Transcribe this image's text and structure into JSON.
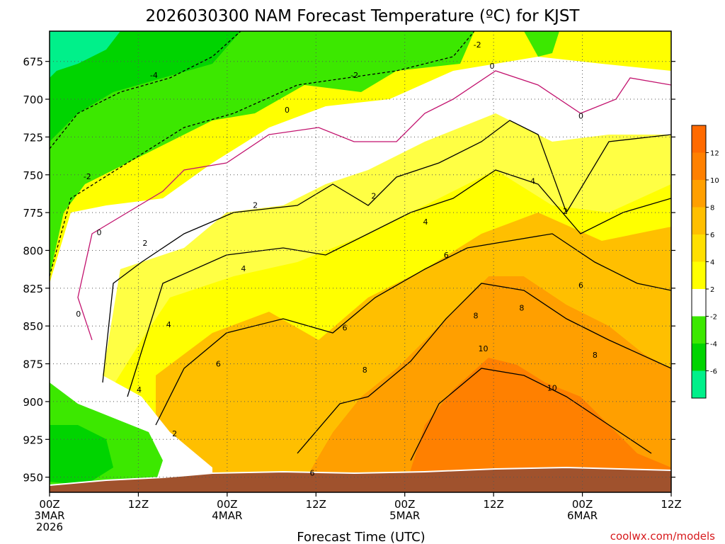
{
  "chart_data": {
    "type": "heatmap",
    "title": "2026030300 NAM Forecast Temperature (ºC) for KJST",
    "xlabel": "Forecast Time (UTC)",
    "ylabel": "",
    "x_axis": {
      "range_hours": [
        0,
        84
      ],
      "ticks": [
        {
          "hour": 0,
          "lines": [
            "00Z",
            "3MAR",
            "2026"
          ]
        },
        {
          "hour": 12,
          "lines": [
            "12Z"
          ]
        },
        {
          "hour": 24,
          "lines": [
            "00Z",
            "4MAR"
          ]
        },
        {
          "hour": 36,
          "lines": [
            "12Z"
          ]
        },
        {
          "hour": 48,
          "lines": [
            "00Z",
            "5MAR"
          ]
        },
        {
          "hour": 60,
          "lines": [
            "12Z"
          ]
        },
        {
          "hour": 72,
          "lines": [
            "00Z",
            "6MAR"
          ]
        },
        {
          "hour": 84,
          "lines": [
            "12Z"
          ]
        }
      ]
    },
    "y_axis": {
      "range_hpa": [
        655,
        960
      ],
      "inverted": true,
      "ticks": [
        675,
        700,
        725,
        750,
        775,
        800,
        825,
        850,
        875,
        900,
        925,
        950
      ]
    },
    "grid": "dotted",
    "colorbar": {
      "levels": [
        -6,
        -4,
        -2,
        2,
        4,
        6,
        8,
        10,
        12
      ],
      "labels": [
        "-6",
        "-4",
        "-2",
        "2",
        "4",
        "6",
        "8",
        "10",
        "12"
      ],
      "colors": [
        "#00f08a",
        "#00d400",
        "#3ce800",
        "#ffffff",
        "#ffff00",
        "#ffdf00",
        "#ffbf00",
        "#ff9f00",
        "#ff8000",
        "#ff6a00"
      ]
    },
    "terrain_color": "#a0522d",
    "contour_labels": [
      {
        "t": "-2",
        "h": 57.8,
        "p": 664
      },
      {
        "t": "-4",
        "h": 14.1,
        "p": 684
      },
      {
        "t": "-2",
        "h": 41.2,
        "p": 684
      },
      {
        "t": "0",
        "h": 59.8,
        "p": 678
      },
      {
        "t": "0",
        "h": 32.1,
        "p": 707
      },
      {
        "t": "0",
        "h": 71.8,
        "p": 711
      },
      {
        "t": "-2",
        "h": 5.1,
        "p": 751
      },
      {
        "t": "0",
        "h": 6.7,
        "p": 788
      },
      {
        "t": "0",
        "h": 3.9,
        "p": 842
      },
      {
        "t": "2",
        "h": 27.8,
        "p": 770
      },
      {
        "t": "2",
        "h": 43.8,
        "p": 764
      },
      {
        "t": "2",
        "h": 69.7,
        "p": 774
      },
      {
        "t": "2",
        "h": 12.9,
        "p": 795
      },
      {
        "t": "2",
        "h": 16.9,
        "p": 921
      },
      {
        "t": "4",
        "h": 65.3,
        "p": 754
      },
      {
        "t": "4",
        "h": 50.8,
        "p": 781
      },
      {
        "t": "4",
        "h": 26.2,
        "p": 812
      },
      {
        "t": "4",
        "h": 16.1,
        "p": 849
      },
      {
        "t": "4",
        "h": 12.1,
        "p": 892
      },
      {
        "t": "6",
        "h": 53.6,
        "p": 803
      },
      {
        "t": "6",
        "h": 71.8,
        "p": 823
      },
      {
        "t": "6",
        "h": 39.9,
        "p": 851
      },
      {
        "t": "6",
        "h": 22.8,
        "p": 875
      },
      {
        "t": "6",
        "h": 35.5,
        "p": 947
      },
      {
        "t": "8",
        "h": 57.6,
        "p": 843
      },
      {
        "t": "8",
        "h": 63.8,
        "p": 838
      },
      {
        "t": "8",
        "h": 42.6,
        "p": 879
      },
      {
        "t": "8",
        "h": 73.7,
        "p": 869
      },
      {
        "t": "10",
        "h": 58.6,
        "p": 865
      },
      {
        "t": "10",
        "h": 67.9,
        "p": 891
      }
    ]
  },
  "credit": "coolwx.com/models"
}
